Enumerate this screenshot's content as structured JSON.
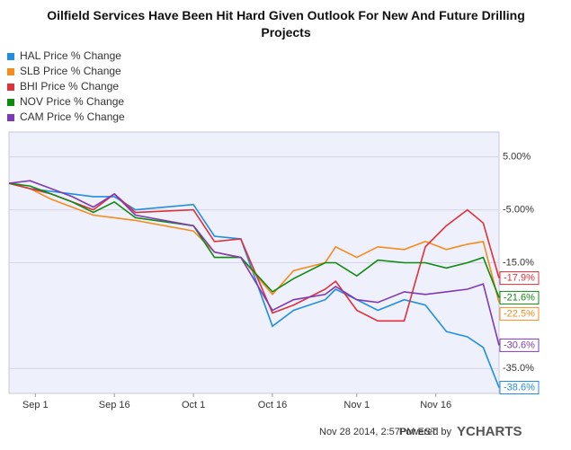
{
  "chart_data": {
    "type": "line",
    "title": "Oilfield Services Have Been Hit Hard Given Outlook For New And Future Drilling Projects",
    "x": [
      -5,
      -1,
      3,
      7,
      11,
      15,
      19,
      30,
      34,
      39,
      45,
      49,
      55,
      57,
      61,
      65,
      70,
      74,
      78,
      82,
      85,
      88
    ],
    "xlim": [
      -5,
      88
    ],
    "xticks": [
      {
        "value": 0,
        "label": "Sep 1"
      },
      {
        "value": 15,
        "label": "Sep 16"
      },
      {
        "value": 30,
        "label": "Oct 1"
      },
      {
        "value": 45,
        "label": "Oct 16"
      },
      {
        "value": 61,
        "label": "Nov 1"
      },
      {
        "value": 76,
        "label": "Nov 16"
      }
    ],
    "ylim": [
      -39.7,
      9.7
    ],
    "yticks": [
      {
        "value": 5,
        "label": "5.00%"
      },
      {
        "value": -5,
        "label": "-5.00%"
      },
      {
        "value": -15,
        "label": "-15.0%"
      },
      {
        "value": -35,
        "label": "-35.0%"
      }
    ],
    "grid": true,
    "legend": "top-left",
    "series": [
      {
        "name": "HAL Price  % Change",
        "color": "#1f8fe0",
        "values": [
          0,
          -1,
          -1.5,
          -2,
          -2.5,
          -2.5,
          -5,
          -4,
          -10,
          -10.5,
          -27,
          -24,
          -22,
          -20,
          -22,
          -24,
          -22,
          -23,
          -28,
          -29,
          -31,
          -38.6
        ],
        "value_labels": [
          null,
          null,
          null,
          null,
          null,
          null,
          null,
          null,
          null,
          null,
          null,
          null,
          null,
          null,
          null,
          null,
          null,
          null,
          null,
          null,
          null,
          "-38.6%"
        ]
      },
      {
        "name": "SLB Price  % Change",
        "color": "#f68b1f",
        "values": [
          0,
          -1,
          -3,
          -4.5,
          -6,
          -6.5,
          -7,
          -9,
          -13,
          -14,
          -21,
          -16.5,
          -15,
          -12,
          -14,
          -12,
          -12.5,
          -11,
          -12.5,
          -11.5,
          -11,
          -22.5
        ],
        "value_labels": [
          null,
          null,
          null,
          null,
          null,
          null,
          null,
          null,
          null,
          null,
          null,
          null,
          null,
          null,
          null,
          null,
          null,
          null,
          null,
          null,
          null,
          "-22.5%"
        ]
      },
      {
        "name": "BHI Price  % Change",
        "color": "#e0303a",
        "values": [
          0,
          -1,
          -2,
          -3.5,
          -5,
          -2,
          -5.5,
          -5,
          -11,
          -10.5,
          -24.5,
          -23,
          -20,
          -18.5,
          -24,
          -26,
          -26,
          -12,
          -8,
          -5,
          -7.5,
          -17.9
        ],
        "value_labels": [
          null,
          null,
          null,
          null,
          null,
          null,
          null,
          null,
          null,
          null,
          null,
          null,
          null,
          null,
          null,
          null,
          null,
          null,
          null,
          null,
          null,
          "-17.9%"
        ]
      },
      {
        "name": "NOV Price  % Change",
        "color": "#0f8a0f",
        "values": [
          0,
          -0.5,
          -2,
          -3.5,
          -5.5,
          -3.5,
          -6.5,
          -8,
          -14,
          -14,
          -20.5,
          -18,
          -15,
          -15,
          -17.5,
          -14.5,
          -15,
          -15,
          -16,
          -15,
          -14,
          -21.6
        ],
        "value_labels": [
          null,
          null,
          null,
          null,
          null,
          null,
          null,
          null,
          null,
          null,
          null,
          null,
          null,
          null,
          null,
          null,
          null,
          null,
          null,
          null,
          null,
          "-21.6%"
        ]
      },
      {
        "name": "CAM Price  % Change",
        "color": "#7e3ab5",
        "values": [
          0,
          0.5,
          -1,
          -2.5,
          -4.5,
          -2,
          -6,
          -8,
          -13,
          -14,
          -24,
          -22,
          -21,
          -19.5,
          -22,
          -22.5,
          -20.5,
          -21,
          -20.5,
          -20,
          -19,
          -30.6
        ],
        "value_labels": [
          null,
          null,
          null,
          null,
          null,
          null,
          null,
          null,
          null,
          null,
          null,
          null,
          null,
          null,
          null,
          null,
          null,
          null,
          null,
          null,
          null,
          "-30.6%"
        ]
      }
    ],
    "footer": {
      "timestamp": "Nov 28 2014, 2:57PM EST.",
      "powered": "Powered by",
      "brand": "YCHARTS"
    }
  }
}
